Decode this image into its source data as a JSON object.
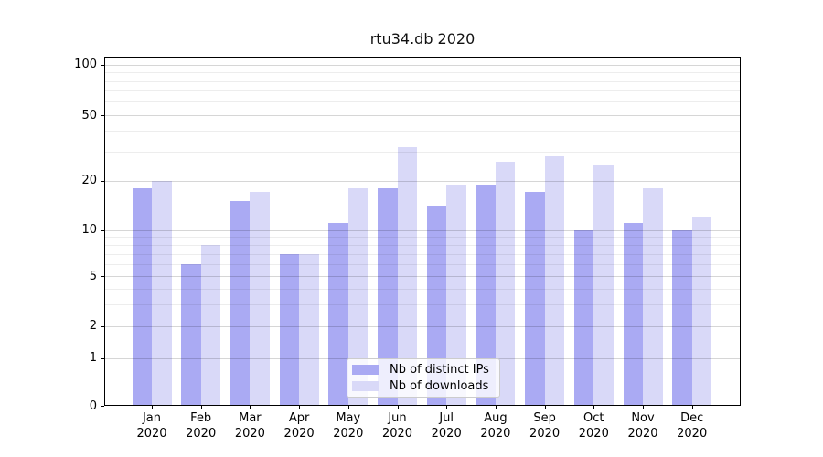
{
  "title": "rtu34.db 2020",
  "chart_data": {
    "type": "bar",
    "title": "rtu34.db 2020",
    "months": [
      "Jan",
      "Feb",
      "Mar",
      "Apr",
      "May",
      "Jun",
      "Jul",
      "Aug",
      "Sep",
      "Oct",
      "Nov",
      "Dec"
    ],
    "year_label": "2020",
    "series": [
      {
        "name": "Nb of distinct IPs",
        "color": "#aaaaf3",
        "values": [
          18,
          6,
          15,
          7,
          11,
          18,
          14,
          19,
          17,
          10,
          11,
          10
        ]
      },
      {
        "name": "Nb of downloads",
        "color": "#d9d9f8",
        "values": [
          20,
          8,
          17,
          7,
          18,
          32,
          19,
          26,
          28,
          25,
          18,
          12
        ]
      }
    ],
    "yscale": "symlog",
    "y_ticks": [
      0,
      1,
      2,
      5,
      10,
      20,
      50,
      100
    ],
    "y_minor_gridlines": [
      3,
      4,
      6,
      7,
      8,
      9,
      30,
      40,
      60,
      70,
      80,
      90
    ],
    "ylim": [
      0,
      112
    ],
    "xlabel": "",
    "ylabel": "",
    "grid": true,
    "legend": {
      "position": "lower center",
      "entries": [
        "Nb of distinct IPs",
        "Nb of downloads"
      ]
    }
  },
  "colors": {
    "bar_dark": "#aaaaf3",
    "bar_light": "#d9d9f8",
    "grid_major": "#cccccc",
    "grid_minor": "#eaeaea",
    "spine": "#000000",
    "text": "#000000",
    "legend_border": "#cccccc"
  }
}
